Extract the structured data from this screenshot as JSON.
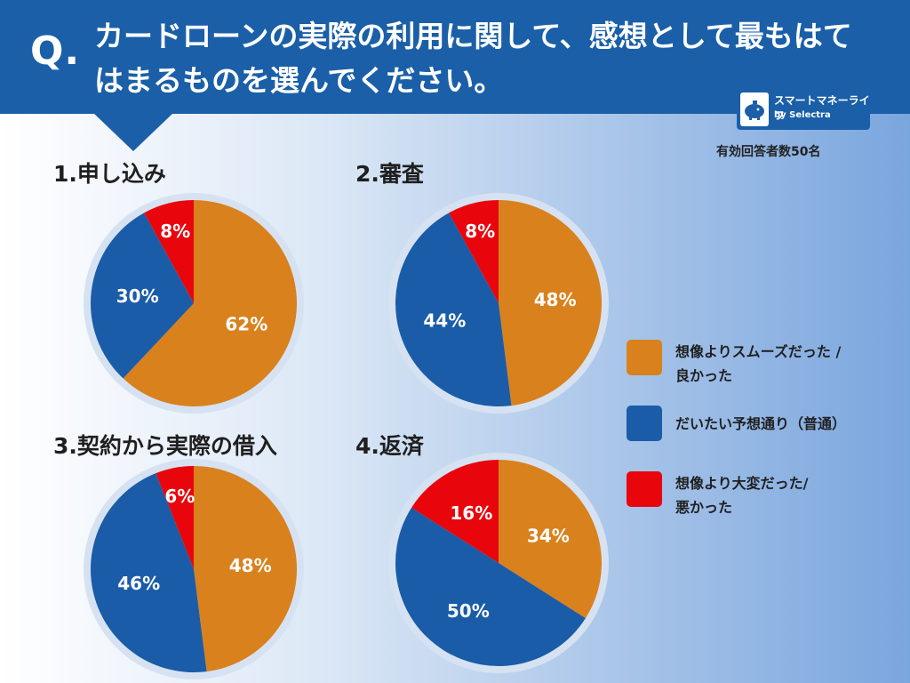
{
  "header": {
    "q_mark": "Q.",
    "question": "カードローンの実際の利用に関して、感想として最もはてはまるものを選んでください。"
  },
  "logo": {
    "name": "スマートマネーライフ",
    "by": "by Selectra"
  },
  "respondents": "有効回答者数50名",
  "colors": {
    "good": "#d9811d",
    "normal": "#1a5ca8",
    "bad": "#e8060c",
    "header": "#1a5fa8"
  },
  "legend": [
    {
      "key": "good",
      "label": "想像よりスムーズだった /\n良かった"
    },
    {
      "key": "normal",
      "label": "だいたい予想通り（普通）"
    },
    {
      "key": "bad",
      "label": "想像より大変だった/\n悪かった"
    }
  ],
  "chart_data": [
    {
      "type": "pie",
      "title": "1.申し込み",
      "categories": [
        "想像よりスムーズだった / 良かった",
        "だいたい予想通り（普通）",
        "想像より大変だった/ 悪かった"
      ],
      "values": [
        62,
        30,
        8
      ],
      "labels": [
        "62%",
        "30%",
        "8%"
      ]
    },
    {
      "type": "pie",
      "title": "2.審査",
      "categories": [
        "想像よりスムーズだった / 良かった",
        "だいたい予想通り（普通）",
        "想像より大変だった/ 悪かった"
      ],
      "values": [
        48,
        44,
        8
      ],
      "labels": [
        "48%",
        "44%",
        "8%"
      ]
    },
    {
      "type": "pie",
      "title": "3.契約から実際の借入",
      "categories": [
        "想像よりスムーズだった / 良かった",
        "だいたい予想通り（普通）",
        "想像より大変だった/ 悪かった"
      ],
      "values": [
        48,
        46,
        6
      ],
      "labels": [
        "48%",
        "46%",
        "6%"
      ]
    },
    {
      "type": "pie",
      "title": "4.返済",
      "categories": [
        "想像よりスムーズだった / 良かった",
        "だいたい予想通り（普通）",
        "想像より大変だった/ 悪かった"
      ],
      "values": [
        34,
        50,
        16
      ],
      "labels": [
        "34%",
        "50%",
        "16%"
      ]
    }
  ]
}
